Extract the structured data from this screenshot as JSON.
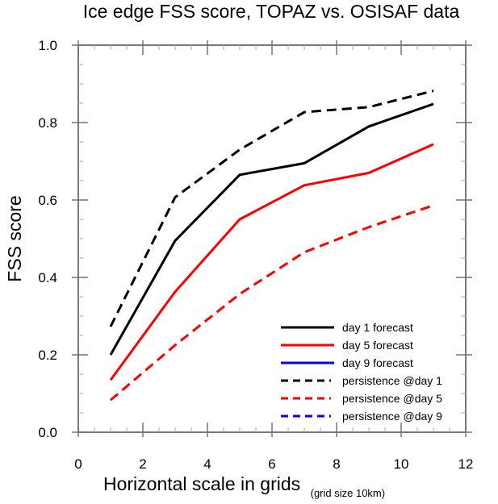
{
  "chart_data": {
    "type": "line",
    "title": "Ice edge FSS score, TOPAZ vs. OSISAF data",
    "xlabel": "Horizontal scale in grids",
    "xlabel_sub": "(grid size 10km)",
    "ylabel": "FSS score",
    "xlim": [
      0,
      12
    ],
    "ylim": [
      0.0,
      1.0
    ],
    "xticks": [
      0,
      2,
      4,
      6,
      8,
      10,
      12
    ],
    "xtick_labels": [
      "0",
      "2",
      "4",
      "6",
      "8",
      "10",
      "12"
    ],
    "yticks": [
      0.0,
      0.2,
      0.4,
      0.6,
      0.8,
      1.0
    ],
    "ytick_labels": [
      "0.0",
      "0.2",
      "0.4",
      "0.6",
      "0.8",
      "1.0"
    ],
    "x_minor_step": 0.5,
    "y_minor_step": 0.05,
    "grid": false,
    "legend_position": "bottom-right",
    "x": [
      1,
      3,
      5,
      7,
      9,
      11
    ],
    "series": [
      {
        "name": "day 1 forecast",
        "color": "#000000",
        "dash": "solid",
        "values": [
          0.2,
          0.495,
          0.665,
          0.695,
          0.79,
          0.848
        ]
      },
      {
        "name": "day 5 forecast",
        "color": "#ff0000",
        "dash": "solid",
        "values": [
          0.135,
          0.363,
          0.55,
          0.638,
          0.67,
          0.744
        ]
      },
      {
        "name": "day 9 forecast",
        "color": "#0000ff",
        "dash": "solid",
        "values": []
      },
      {
        "name": "persistence @day 1",
        "color": "#000000",
        "dash": "dashed",
        "values": [
          0.273,
          0.607,
          0.73,
          0.827,
          0.84,
          0.882
        ]
      },
      {
        "name": "persistence @day 5",
        "color": "#ff0000",
        "dash": "dashed",
        "values": [
          0.083,
          0.225,
          0.357,
          0.465,
          0.53,
          0.586
        ]
      },
      {
        "name": "persistence @day 9",
        "color": "#0000ff",
        "dash": "dashed",
        "values": []
      }
    ]
  }
}
